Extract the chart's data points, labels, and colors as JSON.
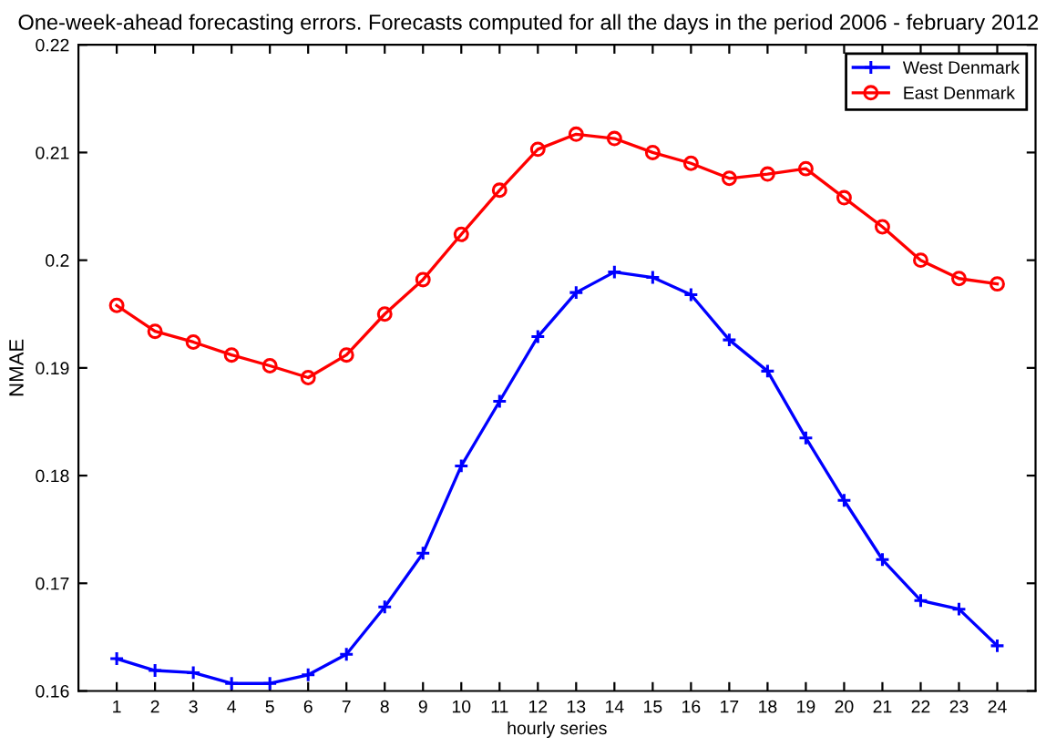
{
  "chart_data": {
    "type": "line",
    "title": "One-week-ahead forecasting errors. Forecasts computed for all the days in the period 2006 - february 2012",
    "xlabel": "hourly series",
    "ylabel": "NMAE",
    "x": [
      1,
      2,
      3,
      4,
      5,
      6,
      7,
      8,
      9,
      10,
      11,
      12,
      13,
      14,
      15,
      16,
      17,
      18,
      19,
      20,
      21,
      22,
      23,
      24
    ],
    "series": [
      {
        "name": "West Denmark",
        "color": "#0000ff",
        "marker": "cross",
        "values": [
          0.163,
          0.1619,
          0.1617,
          0.1607,
          0.1607,
          0.1615,
          0.1634,
          0.1678,
          0.1728,
          0.1809,
          0.1869,
          0.1929,
          0.197,
          0.1989,
          0.1984,
          0.1968,
          0.1926,
          0.1897,
          0.1835,
          0.1777,
          0.1722,
          0.1684,
          0.1676,
          0.1642
        ]
      },
      {
        "name": "East Denmark",
        "color": "#ff0000",
        "marker": "circle",
        "values": [
          0.1958,
          0.1934,
          0.1924,
          0.1912,
          0.1902,
          0.1891,
          0.1912,
          0.195,
          0.1982,
          0.2024,
          0.2065,
          0.2103,
          0.2117,
          0.2113,
          0.21,
          0.209,
          0.2076,
          0.208,
          0.2085,
          0.2058,
          0.2031,
          0.2,
          0.1983,
          0.1978
        ]
      }
    ],
    "xlim": [
      0,
      25
    ],
    "xticks": [
      1,
      2,
      3,
      4,
      5,
      6,
      7,
      8,
      9,
      10,
      11,
      12,
      13,
      14,
      15,
      16,
      17,
      18,
      19,
      20,
      21,
      22,
      23,
      24
    ],
    "ylim": [
      0.16,
      0.22
    ],
    "yticks": [
      0.16,
      0.17,
      0.18,
      0.19,
      0.2,
      0.21,
      0.22
    ],
    "grid": false,
    "legend": "top right",
    "line_style": "solid"
  }
}
